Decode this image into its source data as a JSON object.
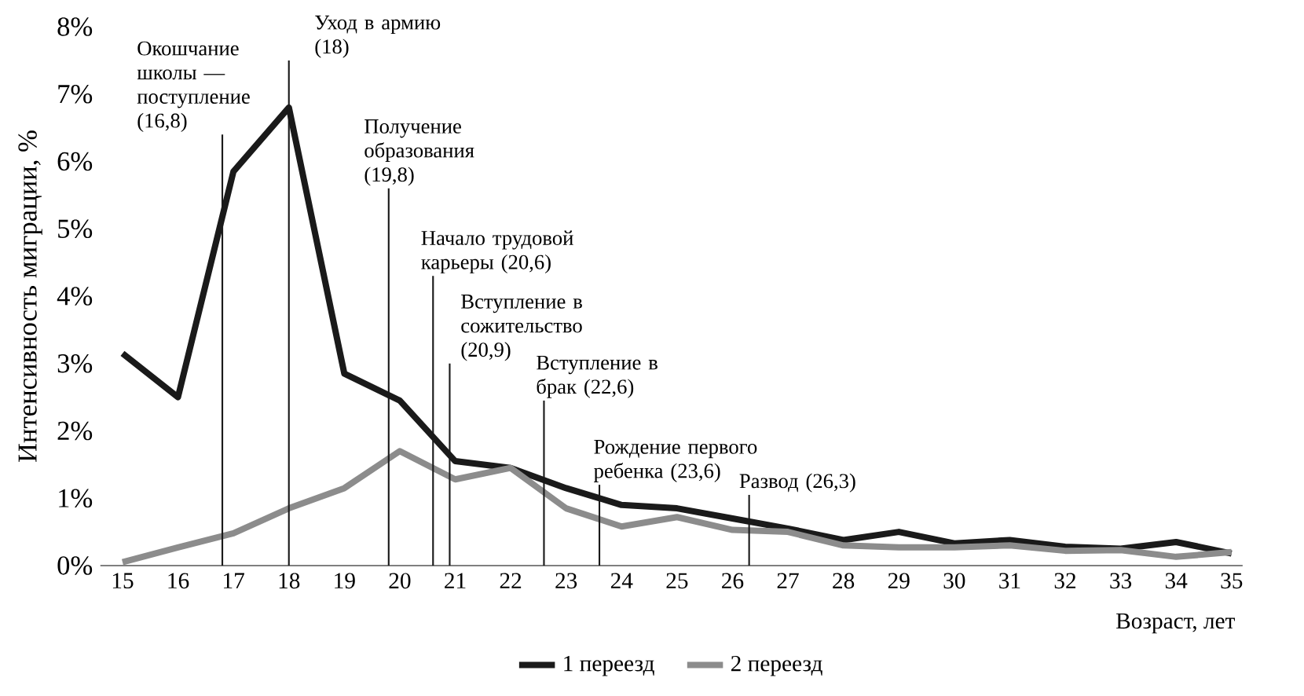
{
  "chart_data": {
    "type": "line",
    "xlabel": "Возраст, лет",
    "ylabel": "Интенсивность миграции, %",
    "x": [
      15,
      16,
      17,
      18,
      19,
      20,
      21,
      22,
      23,
      24,
      25,
      26,
      27,
      28,
      29,
      30,
      31,
      32,
      33,
      34,
      35
    ],
    "xlim": [
      14.6,
      35.2
    ],
    "xticks": [
      15,
      16,
      17,
      18,
      19,
      20,
      21,
      22,
      23,
      24,
      25,
      26,
      27,
      28,
      29,
      30,
      31,
      32,
      33,
      34,
      35
    ],
    "ylim": [
      0,
      8
    ],
    "yticks": [
      {
        "value": 0,
        "label": "0%"
      },
      {
        "value": 1,
        "label": "1%"
      },
      {
        "value": 2,
        "label": "2%"
      },
      {
        "value": 3,
        "label": "3%"
      },
      {
        "value": 4,
        "label": "4%"
      },
      {
        "value": 5,
        "label": "5%"
      },
      {
        "value": 6,
        "label": "6%"
      },
      {
        "value": 7,
        "label": "7%"
      },
      {
        "value": 8,
        "label": "8%"
      }
    ],
    "series": [
      {
        "name": "1 переезд",
        "color": "#1a1a1a",
        "values": [
          3.15,
          2.5,
          5.85,
          6.8,
          2.85,
          2.45,
          1.55,
          1.45,
          1.15,
          0.9,
          0.85,
          0.7,
          0.55,
          0.38,
          0.5,
          0.33,
          0.38,
          0.28,
          0.25,
          0.35,
          0.18
        ]
      },
      {
        "name": "2 переезд",
        "color": "#8c8c8c",
        "values": [
          0.05,
          0.27,
          0.48,
          0.85,
          1.15,
          1.7,
          1.28,
          1.45,
          0.85,
          0.58,
          0.72,
          0.53,
          0.5,
          0.3,
          0.27,
          0.27,
          0.3,
          0.22,
          0.23,
          0.13,
          0.2
        ]
      }
    ],
    "ref_lines": [
      {
        "axis": "x",
        "value": 16.8,
        "label": "Окошчание школы — поступление (16,8)",
        "color": "#1a1a1a"
      },
      {
        "axis": "x",
        "value": 18,
        "label": "Уход в армию (18)",
        "color": "#1a1a1a"
      },
      {
        "axis": "x",
        "value": 19.8,
        "label": "Получение образования (19,8)",
        "color": "#1a1a1a"
      },
      {
        "axis": "x",
        "value": 20.6,
        "label": "Начало трудовой карьеры (20,6)",
        "color": "#1a1a1a"
      },
      {
        "axis": "x",
        "value": 20.9,
        "label": "Вступление в сожительство (20,9)",
        "color": "#1a1a1a"
      },
      {
        "axis": "x",
        "value": 22.6,
        "label": "Вступление в брак (22,6)",
        "color": "#1a1a1a"
      },
      {
        "axis": "x",
        "value": 23.6,
        "label": "Рождение первого ребенка (23,6)",
        "color": "#1a1a1a"
      },
      {
        "axis": "x",
        "value": 26.3,
        "label": "Развод (26,3)",
        "color": "#1a1a1a"
      }
    ],
    "legend": "bottom",
    "grid": false,
    "marker": "none",
    "line_style": "solid"
  }
}
